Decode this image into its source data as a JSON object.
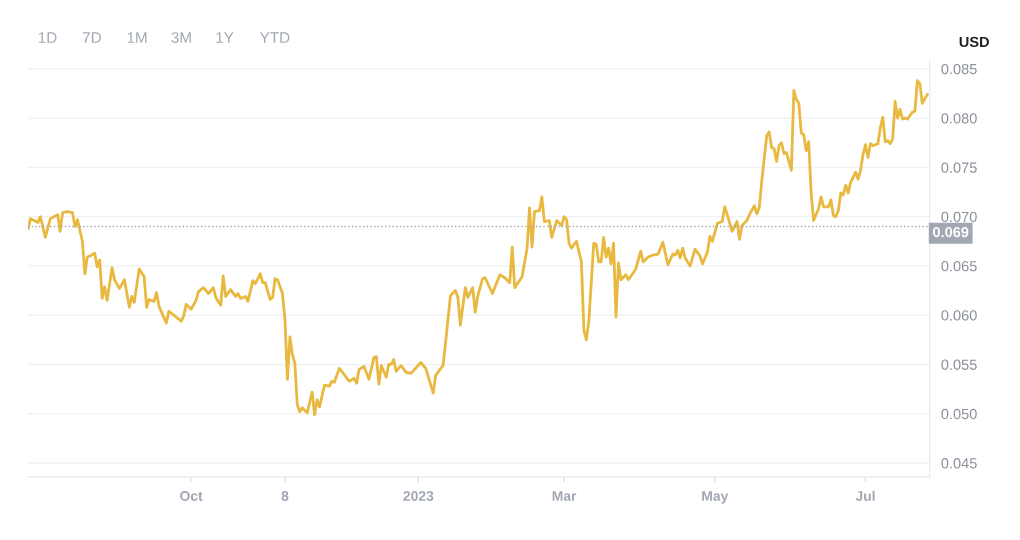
{
  "chart_data": {
    "type": "line",
    "ylabel": "USD",
    "annotations": [
      "1D",
      "7D",
      "1M",
      "3M",
      "1Y",
      "YTD"
    ],
    "x": [
      "2022-07-27",
      "2022-07-28",
      "2022-07-31",
      "2022-08-01",
      "2022-08-03",
      "2022-08-05",
      "2022-08-08",
      "2022-08-09",
      "2022-08-10",
      "2022-08-12",
      "2022-08-14",
      "2022-08-15",
      "2022-08-16",
      "2022-08-18",
      "2022-08-19",
      "2022-08-20",
      "2022-08-21",
      "2022-08-23",
      "2022-08-24",
      "2022-08-25",
      "2022-08-26",
      "2022-08-27",
      "2022-08-28",
      "2022-08-30",
      "2022-08-31",
      "2022-09-02",
      "2022-09-04",
      "2022-09-06",
      "2022-09-07",
      "2022-09-08",
      "2022-09-10",
      "2022-09-12",
      "2022-09-13",
      "2022-09-14",
      "2022-09-16",
      "2022-09-17",
      "2022-09-18",
      "2022-09-21",
      "2022-09-22",
      "2022-09-24",
      "2022-09-27",
      "2022-09-28",
      "2022-09-29",
      "2022-10-01",
      "2022-10-03",
      "2022-10-04",
      "2022-10-06",
      "2022-10-08",
      "2022-10-10",
      "2022-10-11",
      "2022-10-13",
      "2022-10-14",
      "2022-10-15",
      "2022-10-17",
      "2022-10-19",
      "2022-10-20",
      "2022-10-21",
      "2022-10-23",
      "2022-10-24",
      "2022-10-26",
      "2022-10-27",
      "2022-10-29",
      "2022-10-30",
      "2022-10-31",
      "2022-11-02",
      "2022-11-03",
      "2022-11-04",
      "2022-11-05",
      "2022-11-07",
      "2022-11-08",
      "2022-11-09",
      "2022-11-10",
      "2022-11-11",
      "2022-11-12",
      "2022-11-13",
      "2022-11-14",
      "2022-11-15",
      "2022-11-17",
      "2022-11-19",
      "2022-11-20",
      "2022-11-21",
      "2022-11-22",
      "2022-11-24",
      "2022-11-26",
      "2022-11-27",
      "2022-11-28",
      "2022-11-30",
      "2022-12-01",
      "2022-12-04",
      "2022-12-06",
      "2022-12-07",
      "2022-12-08",
      "2022-12-10",
      "2022-12-12",
      "2022-12-14",
      "2022-12-15",
      "2022-12-16",
      "2022-12-17",
      "2022-12-19",
      "2022-12-20",
      "2022-12-21",
      "2022-12-22",
      "2022-12-23",
      "2022-12-25",
      "2022-12-27",
      "2022-12-29",
      "2023-01-02",
      "2023-01-04",
      "2023-01-07",
      "2023-01-08",
      "2023-01-11",
      "2023-01-12",
      "2023-01-14",
      "2023-01-16",
      "2023-01-17",
      "2023-01-18",
      "2023-01-20",
      "2023-01-21",
      "2023-01-23",
      "2023-01-24",
      "2023-01-25",
      "2023-01-27",
      "2023-01-28",
      "2023-01-31",
      "2023-02-03",
      "2023-02-05",
      "2023-02-07",
      "2023-02-08",
      "2023-02-09",
      "2023-02-12",
      "2023-02-14",
      "2023-02-15",
      "2023-02-16",
      "2023-02-17",
      "2023-02-19",
      "2023-02-20",
      "2023-02-21",
      "2023-02-23",
      "2023-02-24",
      "2023-02-26",
      "2023-02-28",
      "2023-03-01",
      "2023-03-02",
      "2023-03-03",
      "2023-03-04",
      "2023-03-06",
      "2023-03-08",
      "2023-03-09",
      "2023-03-10",
      "2023-03-11",
      "2023-03-13",
      "2023-03-14",
      "2023-03-15",
      "2023-03-16",
      "2023-03-17",
      "2023-03-18",
      "2023-03-19",
      "2023-03-20",
      "2023-03-21",
      "2023-03-22",
      "2023-03-23",
      "2023-03-24",
      "2023-03-26",
      "2023-03-27",
      "2023-03-29",
      "2023-03-30",
      "2023-04-01",
      "2023-04-02",
      "2023-04-04",
      "2023-04-06",
      "2023-04-08",
      "2023-04-10",
      "2023-04-12",
      "2023-04-14",
      "2023-04-15",
      "2023-04-16",
      "2023-04-17",
      "2023-04-18",
      "2023-04-19",
      "2023-04-21",
      "2023-04-23",
      "2023-04-25",
      "2023-04-26",
      "2023-04-28",
      "2023-04-29",
      "2023-04-30",
      "2023-05-02",
      "2023-05-04",
      "2023-05-05",
      "2023-05-06",
      "2023-05-08",
      "2023-05-10",
      "2023-05-11",
      "2023-05-12",
      "2023-05-14",
      "2023-05-15",
      "2023-05-17",
      "2023-05-18",
      "2023-05-19",
      "2023-05-20",
      "2023-05-22",
      "2023-05-23",
      "2023-05-24",
      "2023-05-25",
      "2023-05-26",
      "2023-05-27",
      "2023-05-28",
      "2023-05-29",
      "2023-05-30",
      "2023-06-01",
      "2023-06-02",
      "2023-06-03",
      "2023-06-04",
      "2023-06-05",
      "2023-06-06",
      "2023-06-07",
      "2023-06-08",
      "2023-06-09",
      "2023-06-10",
      "2023-06-12",
      "2023-06-13",
      "2023-06-14",
      "2023-06-16",
      "2023-06-17",
      "2023-06-18",
      "2023-06-19",
      "2023-06-20",
      "2023-06-21",
      "2023-06-22",
      "2023-06-23",
      "2023-06-24",
      "2023-06-25",
      "2023-06-27",
      "2023-06-28",
      "2023-06-29",
      "2023-06-30",
      "2023-07-01",
      "2023-07-02",
      "2023-07-03",
      "2023-07-04",
      "2023-07-06",
      "2023-07-07",
      "2023-07-08",
      "2023-07-09",
      "2023-07-10",
      "2023-07-11",
      "2023-07-12",
      "2023-07-13",
      "2023-07-14",
      "2023-07-15",
      "2023-07-16",
      "2023-07-17",
      "2023-07-18",
      "2023-07-20",
      "2023-07-21",
      "2023-07-22",
      "2023-07-23",
      "2023-07-24",
      "2023-07-26"
    ],
    "series": [
      {
        "color": "#e8b83f",
        "values": [
          0.0688,
          0.0698,
          0.0694,
          0.07,
          0.0679,
          0.0698,
          0.0702,
          0.0685,
          0.0704,
          0.0705,
          0.0704,
          0.069,
          0.0697,
          0.0675,
          0.0642,
          0.0659,
          0.066,
          0.0663,
          0.0649,
          0.0656,
          0.0617,
          0.0629,
          0.0615,
          0.0648,
          0.0636,
          0.0627,
          0.0636,
          0.0608,
          0.0619,
          0.0613,
          0.0647,
          0.0639,
          0.0608,
          0.0616,
          0.0614,
          0.0623,
          0.0609,
          0.0592,
          0.0604,
          0.06,
          0.0594,
          0.0599,
          0.0611,
          0.0606,
          0.0615,
          0.0624,
          0.0628,
          0.0622,
          0.0628,
          0.0618,
          0.061,
          0.064,
          0.0619,
          0.0626,
          0.0619,
          0.0622,
          0.0617,
          0.0619,
          0.0614,
          0.0635,
          0.0632,
          0.0642,
          0.0633,
          0.0633,
          0.0616,
          0.0618,
          0.0637,
          0.0636,
          0.0622,
          0.0595,
          0.0535,
          0.0578,
          0.056,
          0.0551,
          0.0509,
          0.0502,
          0.0506,
          0.0501,
          0.0522,
          0.0499,
          0.0514,
          0.0507,
          0.0529,
          0.0528,
          0.0533,
          0.0532,
          0.0546,
          0.0543,
          0.0533,
          0.0536,
          0.0531,
          0.0545,
          0.0548,
          0.0535,
          0.0557,
          0.0558,
          0.053,
          0.0549,
          0.0537,
          0.055,
          0.055,
          0.0555,
          0.0543,
          0.0549,
          0.0542,
          0.0541,
          0.0552,
          0.0546,
          0.0521,
          0.0539,
          0.0549,
          0.0572,
          0.062,
          0.0625,
          0.0618,
          0.059,
          0.0628,
          0.0618,
          0.0628,
          0.0603,
          0.0619,
          0.0637,
          0.0638,
          0.0622,
          0.0641,
          0.0638,
          0.0633,
          0.0669,
          0.0628,
          0.0639,
          0.0668,
          0.0709,
          0.0669,
          0.0705,
          0.0706,
          0.072,
          0.0695,
          0.0696,
          0.0679,
          0.0696,
          0.0691,
          0.07,
          0.0697,
          0.0673,
          0.0668,
          0.0675,
          0.0654,
          0.0585,
          0.0575,
          0.0594,
          0.0673,
          0.0672,
          0.0654,
          0.0654,
          0.0679,
          0.0659,
          0.0668,
          0.0652,
          0.0673,
          0.0598,
          0.0653,
          0.0636,
          0.0641,
          0.0636,
          0.0643,
          0.0647,
          0.0665,
          0.0654,
          0.0659,
          0.0661,
          0.0662,
          0.0674,
          0.0651,
          0.0662,
          0.0661,
          0.0666,
          0.0658,
          0.0668,
          0.0658,
          0.065,
          0.0667,
          0.066,
          0.0652,
          0.0664,
          0.068,
          0.0675,
          0.0693,
          0.0695,
          0.071,
          0.0702,
          0.0685,
          0.0695,
          0.0677,
          0.0691,
          0.0696,
          0.0702,
          0.0711,
          0.0703,
          0.0709,
          0.0736,
          0.0782,
          0.0786,
          0.077,
          0.0769,
          0.0756,
          0.0772,
          0.0775,
          0.0764,
          0.0765,
          0.0747,
          0.0828,
          0.0819,
          0.0815,
          0.0785,
          0.0783,
          0.0767,
          0.0776,
          0.0724,
          0.0696,
          0.0708,
          0.072,
          0.071,
          0.071,
          0.0717,
          0.0701,
          0.07,
          0.0706,
          0.0724,
          0.0722,
          0.0732,
          0.0724,
          0.0735,
          0.0745,
          0.0738,
          0.0747,
          0.0763,
          0.0773,
          0.076,
          0.0774,
          0.0772,
          0.0774,
          0.079,
          0.0801,
          0.0776,
          0.0777,
          0.0774,
          0.0779,
          0.0817,
          0.08,
          0.0809,
          0.0799,
          0.08,
          0.0799,
          0.0806,
          0.0807,
          0.0838,
          0.0835,
          0.0815,
          0.0824
        ]
      }
    ],
    "xlim": [
      "2022-07-27",
      "2023-07-27"
    ],
    "xticks": [
      {
        "value": "2022-10-01",
        "label": "Oct"
      },
      {
        "value": "2022-11-08",
        "label": "8"
      },
      {
        "value": "2023-01-01",
        "label": "2023"
      },
      {
        "value": "2023-03-01",
        "label": "Mar"
      },
      {
        "value": "2023-05-01",
        "label": "May"
      },
      {
        "value": "2023-07-01",
        "label": "Jul"
      }
    ],
    "ylim": [
      0.0436,
      0.0859
    ],
    "yticks": [
      {
        "value": 0.045,
        "label": "0.045"
      },
      {
        "value": 0.05,
        "label": "0.050"
      },
      {
        "value": 0.055,
        "label": "0.055"
      },
      {
        "value": 0.06,
        "label": "0.060"
      },
      {
        "value": 0.065,
        "label": "0.065"
      },
      {
        "value": 0.07,
        "label": "0.070"
      },
      {
        "value": 0.075,
        "label": "0.075"
      },
      {
        "value": 0.08,
        "label": "0.080"
      },
      {
        "value": 0.085,
        "label": "0.085"
      }
    ],
    "ref_lines": [
      {
        "axis": "y",
        "value": 0.069,
        "label": "0.069",
        "color": "#a1a7b3",
        "line_style": "dotted"
      }
    ],
    "grid": "y",
    "legend": false,
    "marker": "none",
    "line_style": "solid"
  }
}
